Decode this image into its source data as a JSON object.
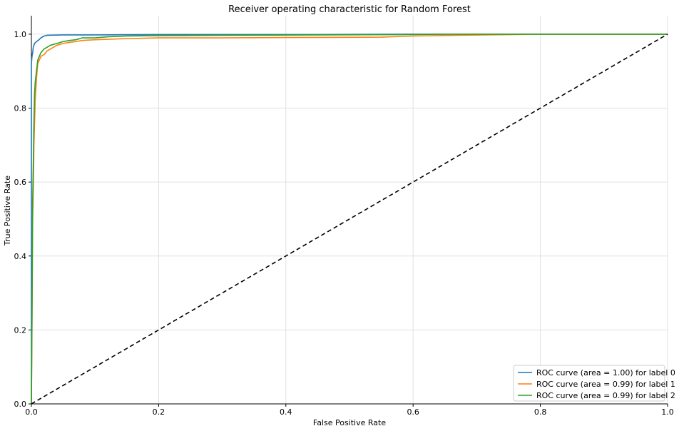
{
  "chart_data": {
    "type": "line",
    "title": "Receiver operating characteristic for Random Forest",
    "xlabel": "False Positive Rate",
    "ylabel": "True Positive Rate",
    "xlim": [
      0.0,
      1.0
    ],
    "ylim": [
      0.0,
      1.05
    ],
    "xticks": [
      0.0,
      0.2,
      0.4,
      0.6,
      0.8,
      1.0
    ],
    "yticks": [
      0.0,
      0.2,
      0.4,
      0.6,
      0.8,
      1.0
    ],
    "xtick_labels": [
      "0.0",
      "0.2",
      "0.4",
      "0.6",
      "0.8",
      "1.0"
    ],
    "ytick_labels": [
      "0.0",
      "0.2",
      "0.4",
      "0.6",
      "0.8",
      "1.0"
    ],
    "grid": true,
    "legend_position": "bottom-right",
    "series": [
      {
        "name": "ROC curve (area = 1.00) for label 0",
        "color": "#1f77b4",
        "x": [
          0.0,
          0.0,
          0.001,
          0.002,
          0.003,
          0.005,
          0.008,
          0.012,
          0.015,
          0.02,
          0.025,
          0.05,
          0.1,
          0.2,
          0.3,
          0.45,
          0.6,
          0.8,
          1.0
        ],
        "y": [
          0.0,
          0.92,
          0.94,
          0.95,
          0.965,
          0.975,
          0.98,
          0.985,
          0.99,
          0.995,
          0.997,
          0.998,
          0.998,
          0.999,
          0.999,
          0.999,
          1.0,
          1.0,
          1.0
        ]
      },
      {
        "name": "ROC curve (area = 0.99) for label 1",
        "color": "#ff7f0e",
        "x": [
          0.0,
          0.001,
          0.002,
          0.003,
          0.004,
          0.005,
          0.006,
          0.008,
          0.01,
          0.015,
          0.02,
          0.025,
          0.03,
          0.04,
          0.05,
          0.06,
          0.07,
          0.08,
          0.1,
          0.15,
          0.2,
          0.3,
          0.4,
          0.55,
          0.6,
          0.67,
          0.8,
          1.0
        ],
        "y": [
          0.0,
          0.22,
          0.5,
          0.58,
          0.7,
          0.76,
          0.82,
          0.88,
          0.92,
          0.94,
          0.945,
          0.955,
          0.96,
          0.97,
          0.975,
          0.978,
          0.98,
          0.983,
          0.985,
          0.988,
          0.99,
          0.99,
          0.991,
          0.992,
          0.995,
          0.997,
          1.0,
          1.0
        ]
      },
      {
        "name": "ROC curve (area = 0.99) for label 2",
        "color": "#2ca02c",
        "x": [
          0.0,
          0.001,
          0.002,
          0.003,
          0.004,
          0.005,
          0.006,
          0.008,
          0.01,
          0.015,
          0.02,
          0.025,
          0.03,
          0.04,
          0.05,
          0.06,
          0.07,
          0.08,
          0.1,
          0.12,
          0.15,
          0.2,
          0.3,
          0.45,
          0.6,
          0.65,
          0.8,
          1.0
        ],
        "y": [
          0.0,
          0.25,
          0.55,
          0.65,
          0.76,
          0.84,
          0.87,
          0.9,
          0.93,
          0.95,
          0.96,
          0.965,
          0.97,
          0.975,
          0.98,
          0.983,
          0.985,
          0.99,
          0.99,
          0.993,
          0.995,
          0.996,
          0.997,
          0.998,
          0.999,
          1.0,
          1.0,
          1.0
        ]
      }
    ],
    "reference_line": {
      "color": "#000000",
      "style": "dashed",
      "x": [
        0.0,
        1.0
      ],
      "y": [
        0.0,
        1.0
      ]
    }
  }
}
